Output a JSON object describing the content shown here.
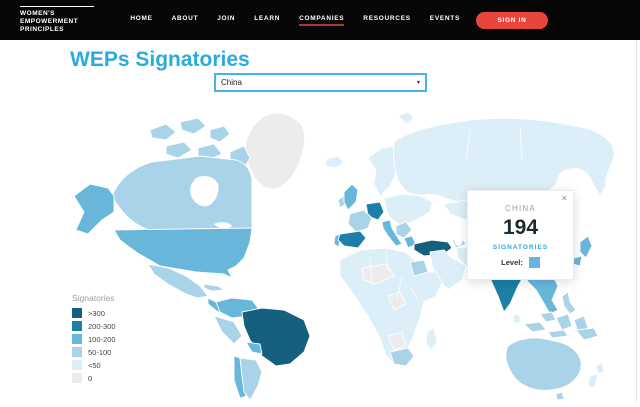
{
  "header": {
    "logo_lines": [
      "WOMEN'S",
      "EMPOWERMENT",
      "PRINCIPLES"
    ],
    "nav_items": [
      {
        "label": "HOME",
        "active": false
      },
      {
        "label": "ABOUT",
        "active": false
      },
      {
        "label": "JOIN",
        "active": false
      },
      {
        "label": "LEARN",
        "active": false
      },
      {
        "label": "COMPANIES",
        "active": true
      },
      {
        "label": "RESOURCES",
        "active": false
      },
      {
        "label": "EVENTS",
        "active": false
      }
    ],
    "sign_in_label": "SIGN IN",
    "sign_in_color": "#e8463d",
    "active_underline_color": "#a33a33"
  },
  "page": {
    "title": "WEPs Signatories",
    "title_color": "#29abe2"
  },
  "country_select": {
    "value": "China",
    "caret_icon": "▾",
    "border_color": "#45b3e6"
  },
  "tooltip": {
    "country": "CHINA",
    "value": "194",
    "unit": "SIGNATORIES",
    "level_label": "Level:",
    "close_icon": "×",
    "level_color": "#68b7db"
  },
  "legend": {
    "title": "Signatories",
    "buckets": [
      ">300",
      "200-300",
      "100-200",
      "50-100",
      "<50",
      "0"
    ]
  },
  "map": {
    "palette": {
      ">300": "#15607f",
      "200-300": "#1b7fa7",
      "100-200": "#68b7db",
      "50-100": "#a8d3e9",
      "<50": "#dceef8",
      "0": "#ececec"
    },
    "regions": {
      "greenland": "0",
      "canada-arctic": "50-100",
      "svalbard": "<50",
      "canada": "50-100",
      "alaska": "100-200",
      "usa": "100-200",
      "mexico": "50-100",
      "central-america": "100-200",
      "cuba": "50-100",
      "colombia": "100-200",
      "peru": "50-100",
      "brazil": ">300",
      "bolivia": "100-200",
      "argentina": "50-100",
      "chile": "100-200",
      "iceland": "<50",
      "uk": "100-200",
      "ireland": "50-100",
      "norway-sweden": "<50",
      "finland": "50-100",
      "baltics": "<50",
      "france": "50-100",
      "germany": "200-300",
      "spain": "200-300",
      "portugal": "100-200",
      "italy": "100-200",
      "eastern-europe": "<50",
      "balkans": "50-100",
      "greece": "100-200",
      "turkey": ">300",
      "caucasus": "50-100",
      "saudi": "<50",
      "iran": "<50",
      "pakistan": "50-100",
      "egypt": "50-100",
      "africa": "<50",
      "sahel": "0",
      "central-africa": "0",
      "southwest-africa": "0",
      "south-africa": "50-100",
      "madagascar": "<50",
      "russia": "<50",
      "central-asia": "<50",
      "mongolia": "<50",
      "china": "100-200",
      "korea": "100-200",
      "japan": "100-200",
      "india": "200-300",
      "se-asia": "100-200",
      "malaysia": "50-100",
      "indonesia": "50-100",
      "philippines": "50-100",
      "sri-lanka": "<50",
      "png": "50-100",
      "australia": "50-100",
      "tasmania": "50-100",
      "new-zealand": "<50"
    }
  },
  "chart_data": {
    "type": "choropleth-map",
    "title": "WEPs Signatories",
    "legend_title": "Signatories",
    "buckets": [
      ">300",
      "200-300",
      "100-200",
      "50-100",
      "<50",
      "0"
    ],
    "selected_country": "China",
    "highlight": {
      "country": "CHINA",
      "signatories": 194,
      "bucket": "100-200"
    },
    "notable": [
      {
        "country": "Brazil",
        "bucket": ">300"
      },
      {
        "country": "Turkey",
        "bucket": ">300"
      },
      {
        "country": "India",
        "bucket": "200-300"
      },
      {
        "country": "Spain",
        "bucket": "200-300"
      },
      {
        "country": "Germany",
        "bucket": "200-300"
      },
      {
        "country": "China",
        "bucket": "100-200"
      },
      {
        "country": "USA",
        "bucket": "100-200"
      },
      {
        "country": "UK",
        "bucket": "100-200"
      },
      {
        "country": "Canada",
        "bucket": "50-100"
      },
      {
        "country": "Mexico",
        "bucket": "50-100"
      },
      {
        "country": "Australia",
        "bucket": "50-100"
      },
      {
        "country": "South Africa",
        "bucket": "50-100"
      },
      {
        "country": "Russia",
        "bucket": "<50"
      },
      {
        "country": "Greenland",
        "bucket": "0"
      }
    ]
  }
}
